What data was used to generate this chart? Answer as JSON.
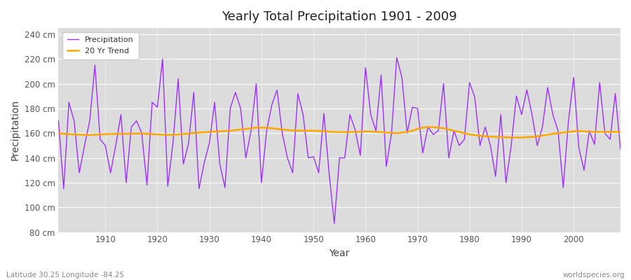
{
  "title": "Yearly Total Precipitation 1901 - 2009",
  "xlabel": "Year",
  "ylabel": "Precipitation",
  "lat_lon_label": "Latitude 30.25 Longitude -84.25",
  "watermark": "worldspecies.org",
  "ylim": [
    80,
    245
  ],
  "ytick_values": [
    80,
    100,
    120,
    140,
    160,
    180,
    200,
    220,
    240
  ],
  "ytick_labels": [
    "80 cm",
    "100 cm",
    "120 cm",
    "140 cm",
    "160 cm",
    "180 cm",
    "200 cm",
    "220 cm",
    "240 cm"
  ],
  "xlim": [
    1901,
    2009
  ],
  "xtick_values": [
    1910,
    1920,
    1930,
    1940,
    1950,
    1960,
    1970,
    1980,
    1990,
    2000
  ],
  "precip_color": "#9B30FF",
  "trend_color": "#FFA500",
  "figure_bg_color": "#FFFFFF",
  "plot_bg_color": "#DCDCDC",
  "legend_bg_color": "#FFFFFF",
  "years": [
    1901,
    1902,
    1903,
    1904,
    1905,
    1906,
    1907,
    1908,
    1909,
    1910,
    1911,
    1912,
    1913,
    1914,
    1915,
    1916,
    1917,
    1918,
    1919,
    1920,
    1921,
    1922,
    1923,
    1924,
    1925,
    1926,
    1927,
    1928,
    1929,
    1930,
    1931,
    1932,
    1933,
    1934,
    1935,
    1936,
    1937,
    1938,
    1939,
    1940,
    1941,
    1942,
    1943,
    1944,
    1945,
    1946,
    1947,
    1948,
    1949,
    1950,
    1951,
    1952,
    1953,
    1954,
    1955,
    1956,
    1957,
    1958,
    1959,
    1960,
    1961,
    1962,
    1963,
    1964,
    1965,
    1966,
    1967,
    1968,
    1969,
    1970,
    1971,
    1972,
    1973,
    1974,
    1975,
    1976,
    1977,
    1978,
    1979,
    1980,
    1981,
    1982,
    1983,
    1984,
    1985,
    1986,
    1987,
    1988,
    1989,
    1990,
    1991,
    1992,
    1993,
    1994,
    1995,
    1996,
    1997,
    1998,
    1999,
    2000,
    2001,
    2002,
    2003,
    2004,
    2005,
    2006,
    2007,
    2008,
    2009
  ],
  "precipitation": [
    170,
    115,
    185,
    170,
    128,
    150,
    170,
    215,
    155,
    150,
    128,
    150,
    175,
    120,
    165,
    170,
    160,
    118,
    185,
    181,
    220,
    117,
    152,
    204,
    135,
    152,
    193,
    115,
    136,
    152,
    185,
    135,
    116,
    180,
    193,
    180,
    140,
    162,
    200,
    120,
    162,
    183,
    195,
    160,
    140,
    128,
    192,
    175,
    140,
    141,
    128,
    176,
    128,
    87,
    140,
    140,
    175,
    163,
    142,
    213,
    175,
    162,
    207,
    133,
    160,
    221,
    205,
    160,
    181,
    180,
    144,
    165,
    159,
    162,
    200,
    140,
    162,
    150,
    155,
    201,
    189,
    150,
    165,
    150,
    125,
    175,
    120,
    150,
    190,
    175,
    195,
    175,
    150,
    165,
    197,
    175,
    162,
    116,
    170,
    205,
    148,
    130,
    162,
    151,
    201,
    160,
    155,
    192,
    147
  ],
  "trend": [
    160.0,
    159.5,
    159.2,
    159.0,
    158.8,
    158.7,
    158.6,
    158.8,
    159.0,
    159.2,
    159.3,
    159.4,
    159.5,
    159.5,
    159.6,
    159.7,
    159.7,
    159.5,
    159.3,
    159.0,
    158.8,
    158.7,
    158.8,
    159.0,
    159.3,
    159.7,
    160.2,
    160.5,
    160.7,
    161.0,
    161.3,
    161.5,
    161.8,
    162.0,
    162.5,
    163.0,
    163.5,
    164.0,
    164.5,
    164.5,
    164.3,
    164.0,
    163.5,
    163.0,
    162.5,
    162.2,
    162.0,
    162.0,
    162.0,
    162.0,
    161.8,
    161.5,
    161.2,
    161.0,
    160.8,
    160.8,
    160.8,
    161.0,
    161.2,
    161.5,
    161.3,
    161.0,
    160.8,
    160.5,
    160.3,
    160.0,
    160.5,
    161.0,
    162.0,
    163.5,
    164.5,
    165.0,
    165.0,
    164.5,
    164.0,
    163.0,
    162.0,
    161.0,
    160.0,
    159.0,
    158.5,
    158.0,
    157.5,
    157.2,
    157.0,
    156.8,
    156.7,
    156.5,
    156.5,
    156.5,
    156.8,
    157.0,
    157.5,
    158.0,
    158.8,
    159.5,
    160.0,
    160.5,
    161.0,
    161.5,
    161.8,
    161.5,
    161.2,
    161.0,
    161.0,
    161.0,
    161.0,
    161.0,
    161.0
  ]
}
